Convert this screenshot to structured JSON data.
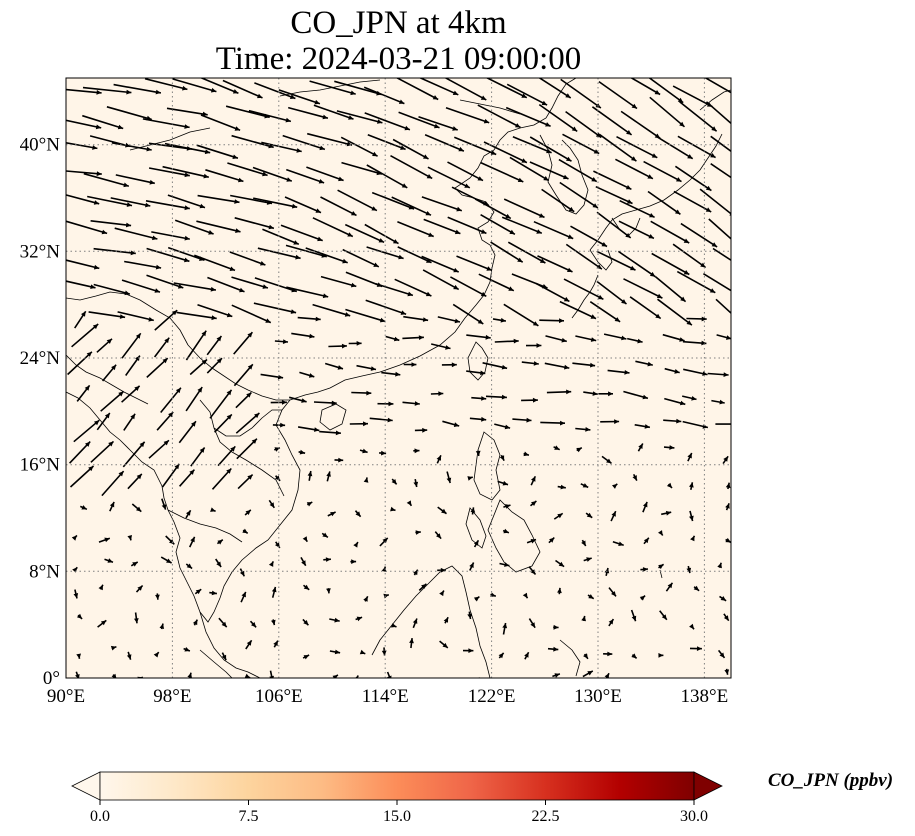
{
  "title_line1": "CO_JPN at 4km",
  "title_line2": "Time: 2024-03-21 09:00:00",
  "lon_ticks": [
    "90°E",
    "98°E",
    "106°E",
    "114°E",
    "122°E",
    "130°E",
    "138°E"
  ],
  "lat_ticks": [
    "0°",
    "8°N",
    "16°N",
    "24°N",
    "32°N",
    "40°N"
  ],
  "colorbar": {
    "label": "CO_JPN (ppbv)",
    "ticks": [
      "0.0",
      "7.5",
      "15.0",
      "22.5",
      "30.0"
    ],
    "min": 0,
    "max": 30,
    "extend": "both",
    "colormap": "OrRd",
    "colors": [
      "#fff7ec",
      "#fee8c8",
      "#fdd49e",
      "#fdbb84",
      "#fc8d59",
      "#ef6548",
      "#d7301f",
      "#b30000",
      "#7f0000"
    ]
  },
  "map": {
    "extent_lon": [
      90,
      140
    ],
    "extent_lat": [
      0,
      45
    ],
    "field_color": "#fff5e8",
    "gridlines": true,
    "gridline_style": "dotted"
  }
}
